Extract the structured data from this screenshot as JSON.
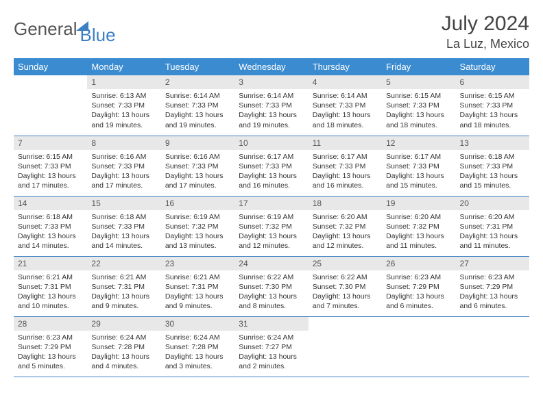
{
  "brand": {
    "part1": "General",
    "part2": "Blue"
  },
  "title": "July 2024",
  "location": "La Luz, Mexico",
  "day_headers": [
    "Sunday",
    "Monday",
    "Tuesday",
    "Wednesday",
    "Thursday",
    "Friday",
    "Saturday"
  ],
  "colors": {
    "header_bg": "#3b8bd0",
    "header_fg": "#ffffff",
    "daynum_bg": "#e8e8e8",
    "border": "#3b7fc4",
    "brand_accent": "#3b7fc4",
    "brand_gray": "#555555",
    "text": "#333333"
  },
  "weeks": [
    [
      null,
      {
        "n": "1",
        "sr": "Sunrise: 6:13 AM",
        "ss": "Sunset: 7:33 PM",
        "dl": "Daylight: 13 hours and 19 minutes."
      },
      {
        "n": "2",
        "sr": "Sunrise: 6:14 AM",
        "ss": "Sunset: 7:33 PM",
        "dl": "Daylight: 13 hours and 19 minutes."
      },
      {
        "n": "3",
        "sr": "Sunrise: 6:14 AM",
        "ss": "Sunset: 7:33 PM",
        "dl": "Daylight: 13 hours and 19 minutes."
      },
      {
        "n": "4",
        "sr": "Sunrise: 6:14 AM",
        "ss": "Sunset: 7:33 PM",
        "dl": "Daylight: 13 hours and 18 minutes."
      },
      {
        "n": "5",
        "sr": "Sunrise: 6:15 AM",
        "ss": "Sunset: 7:33 PM",
        "dl": "Daylight: 13 hours and 18 minutes."
      },
      {
        "n": "6",
        "sr": "Sunrise: 6:15 AM",
        "ss": "Sunset: 7:33 PM",
        "dl": "Daylight: 13 hours and 18 minutes."
      }
    ],
    [
      {
        "n": "7",
        "sr": "Sunrise: 6:15 AM",
        "ss": "Sunset: 7:33 PM",
        "dl": "Daylight: 13 hours and 17 minutes."
      },
      {
        "n": "8",
        "sr": "Sunrise: 6:16 AM",
        "ss": "Sunset: 7:33 PM",
        "dl": "Daylight: 13 hours and 17 minutes."
      },
      {
        "n": "9",
        "sr": "Sunrise: 6:16 AM",
        "ss": "Sunset: 7:33 PM",
        "dl": "Daylight: 13 hours and 17 minutes."
      },
      {
        "n": "10",
        "sr": "Sunrise: 6:17 AM",
        "ss": "Sunset: 7:33 PM",
        "dl": "Daylight: 13 hours and 16 minutes."
      },
      {
        "n": "11",
        "sr": "Sunrise: 6:17 AM",
        "ss": "Sunset: 7:33 PM",
        "dl": "Daylight: 13 hours and 16 minutes."
      },
      {
        "n": "12",
        "sr": "Sunrise: 6:17 AM",
        "ss": "Sunset: 7:33 PM",
        "dl": "Daylight: 13 hours and 15 minutes."
      },
      {
        "n": "13",
        "sr": "Sunrise: 6:18 AM",
        "ss": "Sunset: 7:33 PM",
        "dl": "Daylight: 13 hours and 15 minutes."
      }
    ],
    [
      {
        "n": "14",
        "sr": "Sunrise: 6:18 AM",
        "ss": "Sunset: 7:33 PM",
        "dl": "Daylight: 13 hours and 14 minutes."
      },
      {
        "n": "15",
        "sr": "Sunrise: 6:18 AM",
        "ss": "Sunset: 7:33 PM",
        "dl": "Daylight: 13 hours and 14 minutes."
      },
      {
        "n": "16",
        "sr": "Sunrise: 6:19 AM",
        "ss": "Sunset: 7:32 PM",
        "dl": "Daylight: 13 hours and 13 minutes."
      },
      {
        "n": "17",
        "sr": "Sunrise: 6:19 AM",
        "ss": "Sunset: 7:32 PM",
        "dl": "Daylight: 13 hours and 12 minutes."
      },
      {
        "n": "18",
        "sr": "Sunrise: 6:20 AM",
        "ss": "Sunset: 7:32 PM",
        "dl": "Daylight: 13 hours and 12 minutes."
      },
      {
        "n": "19",
        "sr": "Sunrise: 6:20 AM",
        "ss": "Sunset: 7:32 PM",
        "dl": "Daylight: 13 hours and 11 minutes."
      },
      {
        "n": "20",
        "sr": "Sunrise: 6:20 AM",
        "ss": "Sunset: 7:31 PM",
        "dl": "Daylight: 13 hours and 11 minutes."
      }
    ],
    [
      {
        "n": "21",
        "sr": "Sunrise: 6:21 AM",
        "ss": "Sunset: 7:31 PM",
        "dl": "Daylight: 13 hours and 10 minutes."
      },
      {
        "n": "22",
        "sr": "Sunrise: 6:21 AM",
        "ss": "Sunset: 7:31 PM",
        "dl": "Daylight: 13 hours and 9 minutes."
      },
      {
        "n": "23",
        "sr": "Sunrise: 6:21 AM",
        "ss": "Sunset: 7:31 PM",
        "dl": "Daylight: 13 hours and 9 minutes."
      },
      {
        "n": "24",
        "sr": "Sunrise: 6:22 AM",
        "ss": "Sunset: 7:30 PM",
        "dl": "Daylight: 13 hours and 8 minutes."
      },
      {
        "n": "25",
        "sr": "Sunrise: 6:22 AM",
        "ss": "Sunset: 7:30 PM",
        "dl": "Daylight: 13 hours and 7 minutes."
      },
      {
        "n": "26",
        "sr": "Sunrise: 6:23 AM",
        "ss": "Sunset: 7:29 PM",
        "dl": "Daylight: 13 hours and 6 minutes."
      },
      {
        "n": "27",
        "sr": "Sunrise: 6:23 AM",
        "ss": "Sunset: 7:29 PM",
        "dl": "Daylight: 13 hours and 6 minutes."
      }
    ],
    [
      {
        "n": "28",
        "sr": "Sunrise: 6:23 AM",
        "ss": "Sunset: 7:29 PM",
        "dl": "Daylight: 13 hours and 5 minutes."
      },
      {
        "n": "29",
        "sr": "Sunrise: 6:24 AM",
        "ss": "Sunset: 7:28 PM",
        "dl": "Daylight: 13 hours and 4 minutes."
      },
      {
        "n": "30",
        "sr": "Sunrise: 6:24 AM",
        "ss": "Sunset: 7:28 PM",
        "dl": "Daylight: 13 hours and 3 minutes."
      },
      {
        "n": "31",
        "sr": "Sunrise: 6:24 AM",
        "ss": "Sunset: 7:27 PM",
        "dl": "Daylight: 13 hours and 2 minutes."
      },
      null,
      null,
      null
    ]
  ]
}
